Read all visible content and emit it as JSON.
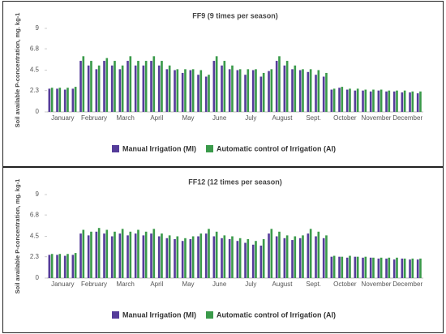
{
  "chart_data": [
    {
      "type": "bar",
      "title": "FF9 (9 times per season)",
      "y_label": "Soil available P-concentration, mg. kg-1",
      "categories": [
        null,
        "January",
        null,
        null,
        null,
        "February",
        null,
        null,
        null,
        "March",
        null,
        null,
        null,
        "April",
        null,
        null,
        null,
        "May",
        null,
        null,
        null,
        "June",
        null,
        null,
        null,
        "July",
        null,
        null,
        null,
        "August",
        null,
        null,
        null,
        "Sept.",
        null,
        null,
        null,
        "October",
        null,
        null,
        null,
        "November",
        null,
        null,
        null,
        "December",
        null,
        null
      ],
      "series": [
        {
          "name": "Manual Irrigation (MI)",
          "color": "#553c9a",
          "values": [
            2.5,
            2.5,
            2.4,
            2.5,
            5.5,
            5.0,
            4.6,
            5.5,
            5.0,
            4.6,
            5.5,
            5.0,
            5.0,
            5.5,
            5.0,
            4.6,
            4.5,
            4.2,
            4.5,
            4.0,
            3.8,
            5.5,
            5.0,
            4.6,
            4.5,
            4.0,
            4.5,
            3.8,
            4.4,
            5.5,
            5.0,
            4.6,
            4.5,
            4.3,
            4.0,
            3.8,
            2.4,
            2.6,
            2.4,
            2.3,
            2.3,
            2.2,
            2.3,
            2.2,
            2.2,
            2.1,
            2.1,
            2.0
          ]
        },
        {
          "name": "Automatic control of Irrigation (AI)",
          "color": "#3a9a4a",
          "values": [
            2.6,
            2.6,
            2.6,
            2.7,
            6.0,
            5.5,
            5.0,
            5.8,
            5.5,
            5.0,
            6.0,
            5.5,
            5.5,
            6.0,
            5.5,
            5.0,
            4.6,
            4.6,
            4.6,
            4.5,
            4.0,
            6.0,
            5.5,
            5.0,
            4.6,
            4.6,
            4.6,
            4.2,
            4.6,
            6.0,
            5.5,
            5.0,
            4.6,
            4.6,
            4.5,
            4.2,
            2.5,
            2.7,
            2.5,
            2.5,
            2.4,
            2.4,
            2.4,
            2.3,
            2.3,
            2.3,
            2.2,
            2.2
          ]
        }
      ],
      "ylim": [
        0,
        9
      ],
      "yticks": [
        0,
        2.3,
        4.5,
        6.8,
        9
      ],
      "grid": false
    },
    {
      "type": "bar",
      "title": "FF12 (12 times per season)",
      "y_label": "Soil available P-concentration, mg. kg-1",
      "categories": [
        null,
        "January",
        null,
        null,
        null,
        "February",
        null,
        null,
        null,
        "March",
        null,
        null,
        null,
        "April",
        null,
        null,
        null,
        "May",
        null,
        null,
        null,
        "June",
        null,
        null,
        null,
        "July",
        null,
        null,
        null,
        "August",
        null,
        null,
        null,
        "Sept.",
        null,
        null,
        null,
        "October",
        null,
        null,
        null,
        "November",
        null,
        null,
        null,
        "December",
        null,
        null
      ],
      "series": [
        {
          "name": "Manual Irrigation (MI)",
          "color": "#553c9a",
          "values": [
            2.5,
            2.5,
            2.4,
            2.5,
            4.8,
            4.6,
            5.0,
            4.8,
            4.5,
            4.8,
            4.6,
            4.8,
            4.6,
            4.8,
            4.5,
            4.3,
            4.2,
            4.0,
            4.2,
            4.5,
            4.8,
            4.5,
            4.3,
            4.2,
            4.0,
            3.8,
            3.6,
            3.5,
            4.8,
            4.5,
            4.3,
            4.1,
            4.3,
            4.8,
            4.5,
            4.3,
            2.3,
            2.3,
            2.2,
            2.3,
            2.2,
            2.2,
            2.1,
            2.1,
            2.0,
            2.1,
            2.0,
            2.0
          ]
        },
        {
          "name": "Automatic control of Irrigation (AI)",
          "color": "#3a9a4a",
          "values": [
            2.6,
            2.6,
            2.6,
            2.7,
            5.2,
            5.0,
            5.4,
            5.2,
            5.0,
            5.3,
            5.0,
            5.2,
            5.0,
            5.3,
            4.8,
            4.6,
            4.5,
            4.3,
            4.5,
            4.8,
            5.3,
            5.0,
            4.6,
            4.5,
            4.3,
            4.2,
            4.0,
            4.2,
            5.3,
            5.0,
            4.6,
            4.5,
            4.6,
            5.3,
            5.0,
            4.6,
            2.4,
            2.3,
            2.4,
            2.3,
            2.3,
            2.2,
            2.2,
            2.2,
            2.2,
            2.1,
            2.1,
            2.1
          ]
        }
      ],
      "ylim": [
        0,
        9
      ],
      "yticks": [
        0,
        2.3,
        4.5,
        6.8,
        9
      ],
      "grid": false
    }
  ]
}
